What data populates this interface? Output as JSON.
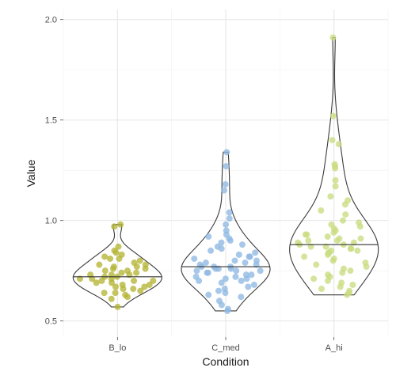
{
  "chart_data": {
    "type": "violin",
    "xlabel": "Condition",
    "ylabel": "Value",
    "ylim": [
      0.42,
      2.05
    ],
    "yticks": [
      0.5,
      1.0,
      1.5,
      2.0
    ],
    "ytick_labels": [
      "0.5",
      "1.0",
      "1.5",
      "2.0"
    ],
    "grid": true,
    "groups": [
      {
        "name": "B_lo",
        "color": "#b5b535",
        "median": 0.72,
        "min": 0.57,
        "max": 0.98,
        "points": [
          0.98,
          0.97,
          0.87,
          0.85,
          0.84,
          0.83,
          0.82,
          0.81,
          0.81,
          0.8,
          0.79,
          0.78,
          0.78,
          0.77,
          0.77,
          0.76,
          0.76,
          0.75,
          0.75,
          0.74,
          0.74,
          0.73,
          0.73,
          0.73,
          0.72,
          0.72,
          0.71,
          0.71,
          0.71,
          0.7,
          0.7,
          0.7,
          0.69,
          0.69,
          0.68,
          0.68,
          0.67,
          0.67,
          0.66,
          0.66,
          0.65,
          0.64,
          0.64,
          0.63,
          0.62,
          0.61,
          0.57
        ]
      },
      {
        "name": "C_med",
        "color": "#8fb8e3",
        "median": 0.77,
        "min": 0.55,
        "max": 1.34,
        "points": [
          1.34,
          1.27,
          1.18,
          1.15,
          1.04,
          1.01,
          0.98,
          0.95,
          0.93,
          0.92,
          0.91,
          0.9,
          0.89,
          0.88,
          0.87,
          0.86,
          0.85,
          0.84,
          0.83,
          0.82,
          0.82,
          0.81,
          0.8,
          0.8,
          0.79,
          0.79,
          0.78,
          0.78,
          0.77,
          0.77,
          0.77,
          0.76,
          0.76,
          0.76,
          0.75,
          0.75,
          0.75,
          0.74,
          0.74,
          0.73,
          0.73,
          0.72,
          0.72,
          0.71,
          0.71,
          0.7,
          0.7,
          0.69,
          0.68,
          0.67,
          0.66,
          0.65,
          0.64,
          0.63,
          0.62,
          0.6,
          0.58,
          0.56,
          0.55
        ]
      },
      {
        "name": "A_hi",
        "color": "#c9dd80",
        "median": 0.88,
        "min": 0.63,
        "max": 1.91,
        "points": [
          1.91,
          1.52,
          1.4,
          1.38,
          1.28,
          1.27,
          1.26,
          1.2,
          1.17,
          1.12,
          1.1,
          1.08,
          1.05,
          1.03,
          1.0,
          0.99,
          0.98,
          0.97,
          0.96,
          0.95,
          0.94,
          0.93,
          0.93,
          0.92,
          0.91,
          0.91,
          0.9,
          0.9,
          0.89,
          0.89,
          0.88,
          0.88,
          0.87,
          0.87,
          0.86,
          0.86,
          0.85,
          0.85,
          0.84,
          0.84,
          0.83,
          0.82,
          0.81,
          0.8,
          0.79,
          0.78,
          0.77,
          0.76,
          0.75,
          0.74,
          0.73,
          0.72,
          0.71,
          0.7,
          0.69,
          0.68,
          0.67,
          0.66,
          0.65,
          0.64,
          0.63
        ]
      }
    ]
  }
}
